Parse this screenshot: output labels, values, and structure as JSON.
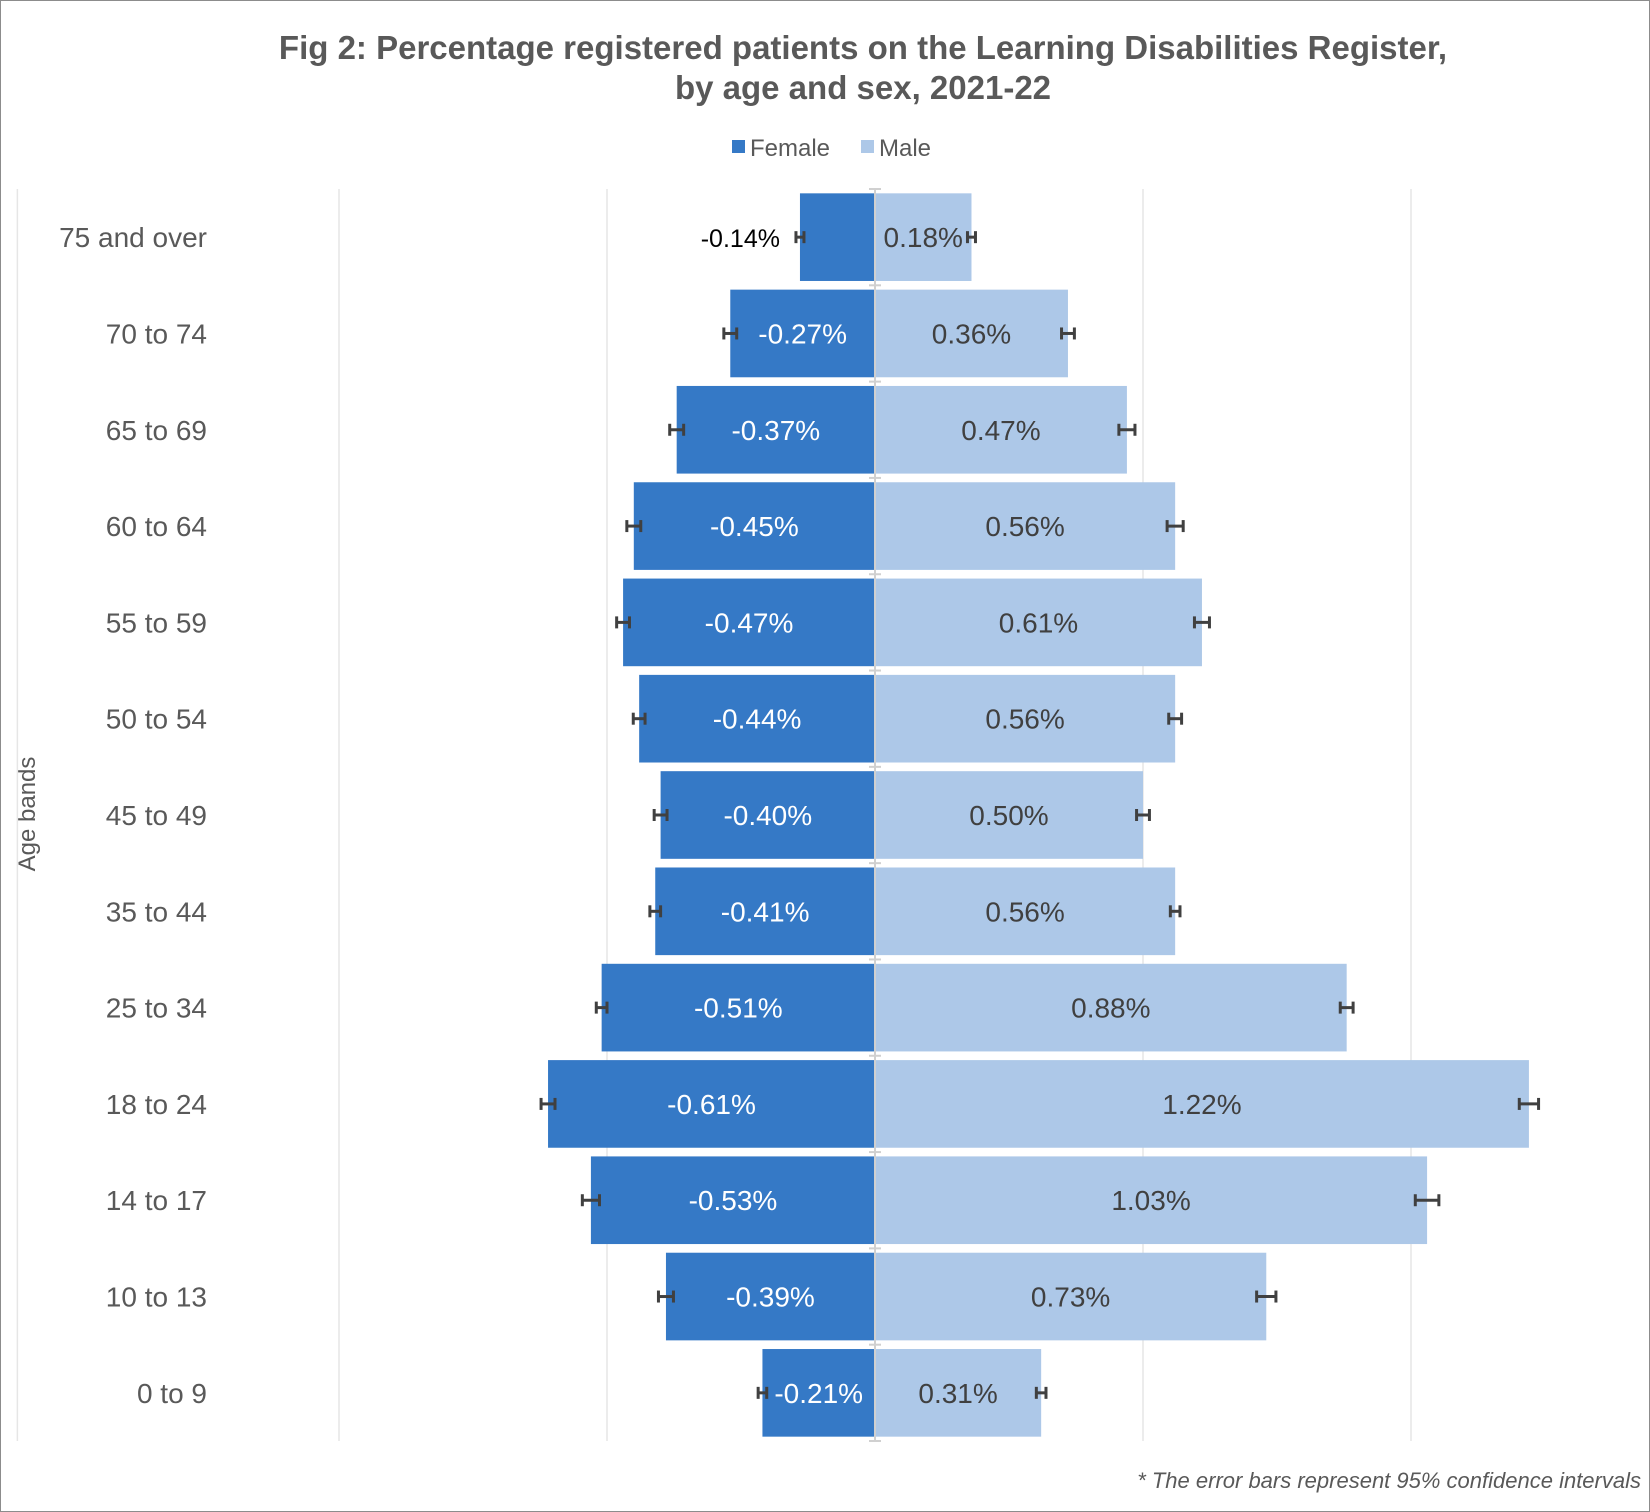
{
  "chart_data": {
    "type": "bar",
    "orientation": "horizontal",
    "title": "Fig 2: Percentage registered patients on the Learning Disabilities Register,",
    "title_line2": "by age and sex, 2021-22",
    "ylabel": "Age bands",
    "xlabel": "",
    "xlim": [
      -1.6,
      1.6
    ],
    "gridlines": [
      -1.6,
      -1.0,
      -0.5,
      0,
      0.5,
      1.0,
      1.6
    ],
    "grid": true,
    "legend_position": "top",
    "footnote": "* The error bars represent 95% confidence intervals",
    "categories": [
      "75 and over",
      "70 to 74",
      "65 to 69",
      "60 to 64",
      "55 to 59",
      "50 to 54",
      "45 to 49",
      "35 to 44",
      "25 to 34",
      "18 to 24",
      "14 to 17",
      "10 to 13",
      "0 to 9"
    ],
    "series": [
      {
        "name": "Female",
        "color": "#3579c6",
        "values": [
          -0.14,
          -0.27,
          -0.37,
          -0.45,
          -0.47,
          -0.44,
          -0.4,
          -0.41,
          -0.51,
          -0.61,
          -0.53,
          -0.39,
          -0.21
        ],
        "labels": [
          "-0.14%",
          "-0.27%",
          "-0.37%",
          "-0.45%",
          "-0.47%",
          "-0.44%",
          "-0.40%",
          "-0.41%",
          "-0.51%",
          "-0.61%",
          "-0.53%",
          "-0.39%",
          "-0.21%"
        ],
        "error": [
          0.007,
          0.012,
          0.013,
          0.013,
          0.012,
          0.011,
          0.012,
          0.01,
          0.01,
          0.013,
          0.016,
          0.014,
          0.008
        ]
      },
      {
        "name": "Male",
        "color": "#adc8e8",
        "values": [
          0.18,
          0.36,
          0.47,
          0.56,
          0.61,
          0.56,
          0.5,
          0.56,
          0.88,
          1.22,
          1.03,
          0.73,
          0.31
        ],
        "labels": [
          "0.18%",
          "0.36%",
          "0.47%",
          "0.56%",
          "0.61%",
          "0.56%",
          "0.50%",
          "0.56%",
          "0.88%",
          "1.22%",
          "1.03%",
          "0.73%",
          "0.31%"
        ],
        "error": [
          0.007,
          0.012,
          0.015,
          0.015,
          0.014,
          0.012,
          0.012,
          0.009,
          0.012,
          0.018,
          0.022,
          0.018,
          0.009
        ]
      }
    ]
  }
}
